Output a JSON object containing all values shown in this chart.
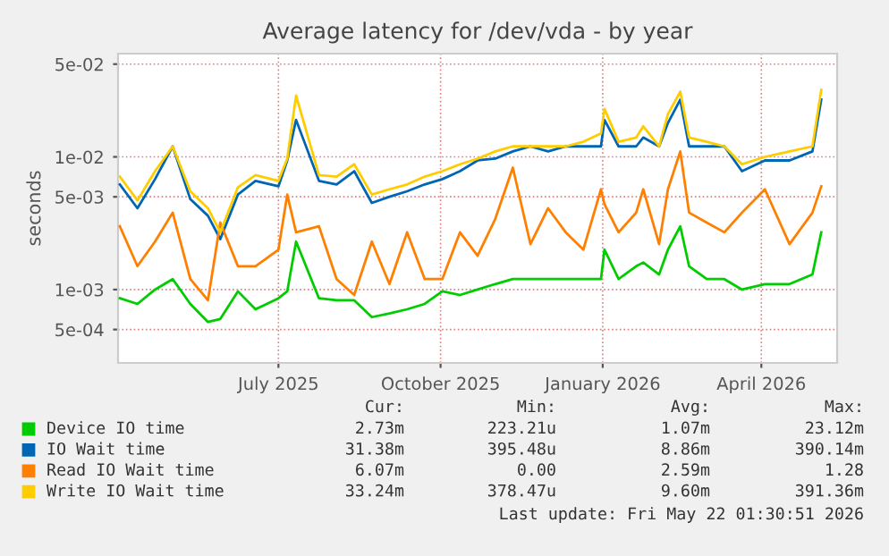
{
  "chart_data": {
    "type": "line",
    "title": "Average latency for /dev/vda - by year",
    "ylabel": "seconds",
    "log": "y",
    "grid": true,
    "legend": "bottom",
    "x": [
      "2025-04-02",
      "2025-04-12",
      "2025-04-22",
      "2025-05-02",
      "2025-05-12",
      "2025-05-22",
      "2025-05-29",
      "2025-06-08",
      "2025-06-18",
      "2025-07-01",
      "2025-07-06",
      "2025-07-11",
      "2025-07-24",
      "2025-08-03",
      "2025-08-13",
      "2025-08-23",
      "2025-09-02",
      "2025-09-12",
      "2025-09-22",
      "2025-10-02",
      "2025-10-12",
      "2025-10-22",
      "2025-11-01",
      "2025-11-11",
      "2025-11-21",
      "2025-12-01",
      "2025-12-11",
      "2025-12-21",
      "2025-12-31",
      "2026-01-02",
      "2026-01-10",
      "2026-01-20",
      "2026-01-24",
      "2026-02-02",
      "2026-02-07",
      "2026-02-14",
      "2026-02-19",
      "2026-03-01",
      "2026-03-11",
      "2026-03-21",
      "2026-04-03",
      "2026-04-17",
      "2026-04-30",
      "2026-05-05"
    ],
    "xlim": [
      "2025-04-01",
      "2026-05-14"
    ],
    "xticks": [
      {
        "value": "2025-07-01",
        "label": "July 2025"
      },
      {
        "value": "2025-10-01",
        "label": "October 2025"
      },
      {
        "value": "2026-01-01",
        "label": "January 2026"
      },
      {
        "value": "2026-04-01",
        "label": "April 2026"
      }
    ],
    "ylim": [
      0.00028,
      0.06
    ],
    "yticks": [
      {
        "value": 0.0005,
        "label": "5e-04"
      },
      {
        "value": 0.001,
        "label": "1e-03"
      },
      {
        "value": 0.005,
        "label": "5e-03"
      },
      {
        "value": 0.01,
        "label": "1e-02"
      },
      {
        "value": 0.05,
        "label": "5e-02"
      }
    ],
    "series": [
      {
        "name": "Device IO time",
        "color": "#00cc00",
        "values": [
          0.00086,
          0.00078,
          0.001,
          0.0012,
          0.00078,
          0.00057,
          0.0006,
          0.00097,
          0.00071,
          0.00086,
          0.00097,
          0.0023,
          0.00086,
          0.00083,
          0.00083,
          0.00062,
          0.00066,
          0.00071,
          0.00078,
          0.00097,
          0.00091,
          0.001,
          0.0011,
          0.0012,
          0.0012,
          0.0012,
          0.0012,
          0.0012,
          0.0012,
          0.002,
          0.0012,
          0.0015,
          0.0016,
          0.0013,
          0.002,
          0.003,
          0.0015,
          0.0012,
          0.0012,
          0.001,
          0.0011,
          0.0011,
          0.0013,
          0.0027
        ]
      },
      {
        "name": "IO Wait time",
        "color": "#0066b3",
        "values": [
          0.0062,
          0.0041,
          0.0068,
          0.012,
          0.0048,
          0.0036,
          0.0024,
          0.0052,
          0.0066,
          0.006,
          0.0094,
          0.019,
          0.0066,
          0.0062,
          0.0078,
          0.0045,
          0.005,
          0.0055,
          0.0062,
          0.0068,
          0.0078,
          0.0094,
          0.0097,
          0.011,
          0.012,
          0.011,
          0.012,
          0.012,
          0.012,
          0.019,
          0.012,
          0.012,
          0.014,
          0.012,
          0.018,
          0.027,
          0.012,
          0.012,
          0.012,
          0.0078,
          0.0094,
          0.0094,
          0.011,
          0.027
        ]
      },
      {
        "name": "Read IO Wait time",
        "color": "#ff8000",
        "values": [
          0.003,
          0.0015,
          0.0023,
          0.0038,
          0.0012,
          0.00083,
          0.0032,
          0.0015,
          0.0015,
          0.002,
          0.0052,
          0.0027,
          0.003,
          0.0012,
          0.00091,
          0.0023,
          0.0011,
          0.0027,
          0.0012,
          0.0012,
          0.0027,
          0.0018,
          0.0034,
          0.0083,
          0.0022,
          0.0041,
          0.0027,
          0.002,
          0.0057,
          0.0044,
          0.0027,
          0.0038,
          0.0057,
          0.0022,
          0.0057,
          0.011,
          0.0038,
          0.0032,
          0.0027,
          0.0038,
          0.0057,
          0.0022,
          0.0038,
          0.006
        ]
      },
      {
        "name": "Write IO Wait time",
        "color": "#ffcc00",
        "values": [
          0.0071,
          0.0047,
          0.0078,
          0.012,
          0.0055,
          0.0041,
          0.0027,
          0.0059,
          0.0073,
          0.0066,
          0.0097,
          0.029,
          0.0073,
          0.0071,
          0.0088,
          0.0052,
          0.0057,
          0.0062,
          0.0071,
          0.0078,
          0.0088,
          0.0097,
          0.011,
          0.012,
          0.012,
          0.012,
          0.012,
          0.013,
          0.015,
          0.023,
          0.013,
          0.014,
          0.017,
          0.012,
          0.021,
          0.031,
          0.014,
          0.013,
          0.012,
          0.0088,
          0.01,
          0.011,
          0.012,
          0.032
        ]
      }
    ],
    "annotations": [
      "Cur:",
      "Min:",
      "Avg:",
      "Max:",
      "2.73m",
      "223.21u",
      "1.07m",
      "23.12m",
      "31.38m",
      "395.48u",
      "8.86m",
      "390.14m",
      "6.07m",
      "0.00",
      "2.59m",
      "1.28",
      "33.24m",
      "378.47u",
      "9.60m",
      "391.36m",
      "Last update: Fri May 22 01:30:51 2026"
    ]
  }
}
